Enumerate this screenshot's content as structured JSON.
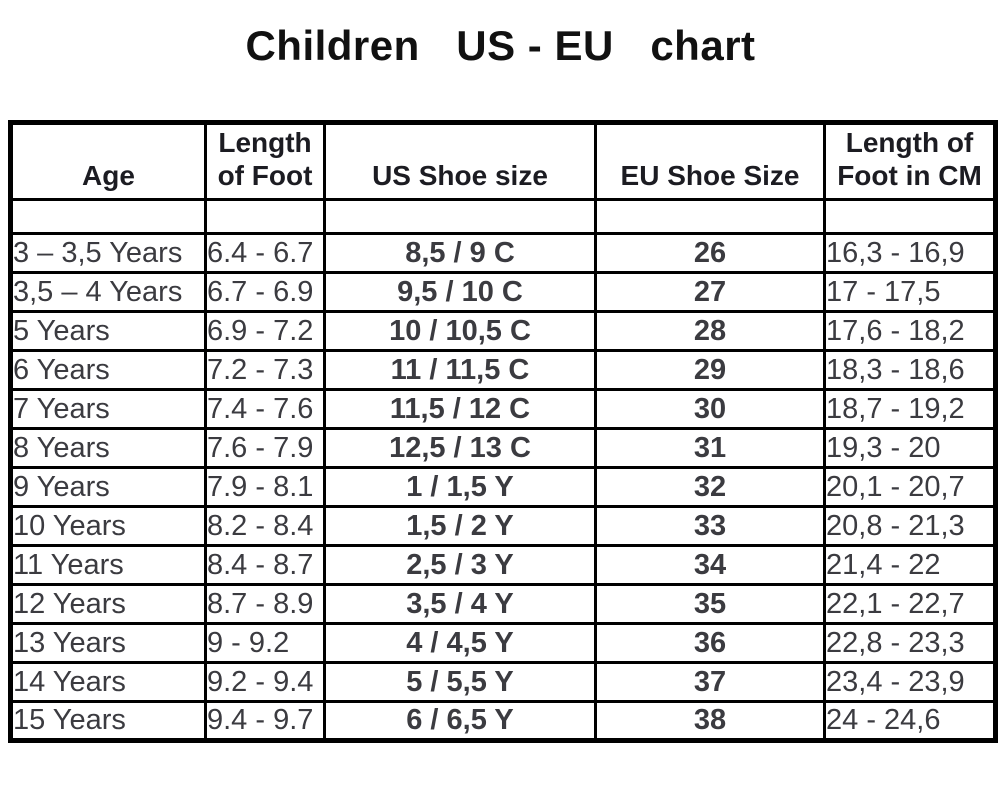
{
  "page_title": "Children   US - EU   chart",
  "table": {
    "headers": [
      {
        "text": "Age"
      },
      {
        "text": "Length\nof Foot"
      },
      {
        "text": "US Shoe size"
      },
      {
        "text": "EU Shoe Size"
      },
      {
        "text": "Length of\nFoot in CM"
      }
    ]
  },
  "chart_data": {
    "type": "table",
    "title": "Children US - EU chart",
    "columns": [
      "Age",
      "Length of Foot",
      "US Shoe size",
      "EU Shoe Size",
      "Length of Foot in CM"
    ],
    "rows": [
      [
        "3 – 3,5 Years",
        "6.4 - 6.7",
        "8,5 / 9 C",
        "26",
        "16,3 - 16,9"
      ],
      [
        "3,5 – 4 Years",
        "6.7 - 6.9",
        "9,5 / 10 C",
        "27",
        "17 - 17,5"
      ],
      [
        "5 Years",
        "6.9 - 7.2",
        "10 / 10,5 C",
        "28",
        "17,6 - 18,2"
      ],
      [
        "6 Years",
        "7.2 - 7.3",
        "11 / 11,5 C",
        "29",
        "18,3 - 18,6"
      ],
      [
        "7 Years",
        "7.4 - 7.6",
        "11,5 / 12 C",
        "30",
        "18,7 - 19,2"
      ],
      [
        "8 Years",
        "7.6 - 7.9",
        "12,5 / 13 C",
        "31",
        "19,3 - 20"
      ],
      [
        "9 Years",
        "7.9 - 8.1",
        "1 / 1,5 Y",
        "32",
        "20,1 - 20,7"
      ],
      [
        "10 Years",
        "8.2 - 8.4",
        "1,5 / 2 Y",
        "33",
        "20,8 - 21,3"
      ],
      [
        "11 Years",
        "8.4 - 8.7",
        "2,5 / 3 Y",
        "34",
        "21,4 - 22"
      ],
      [
        "12 Years",
        "8.7 - 8.9",
        "3,5 / 4 Y",
        "35",
        "22,1 - 22,7"
      ],
      [
        "13 Years",
        "9 - 9.2",
        "4 / 4,5 Y",
        "36",
        "22,8 - 23,3"
      ],
      [
        "14 Years",
        "9.2 - 9.4",
        "5 / 5,5 Y",
        "37",
        "23,4 - 23,9"
      ],
      [
        "15 Years",
        "9.4 - 9.7",
        "6 / 6,5 Y",
        "38",
        "24 - 24,6"
      ]
    ]
  },
  "colors": {
    "background": "#ffffff",
    "border": "#000000",
    "text_regular": "#3b3b40",
    "text_bold": "#232328"
  }
}
